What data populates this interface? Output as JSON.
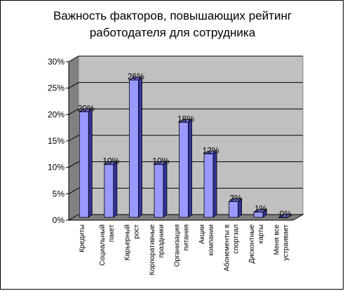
{
  "chart_data": {
    "type": "bar",
    "title_lines": [
      "Важность факторов, повышающих рейтинг",
      "работодателя для сотрудника"
    ],
    "categories": [
      [
        "Кредиты"
      ],
      [
        "Социальный",
        "пакет"
      ],
      [
        "Карьерный",
        "рост"
      ],
      [
        "Корпоративные",
        "праздники"
      ],
      [
        "Организация",
        "питания"
      ],
      [
        "Акции",
        "компании"
      ],
      [
        "Абонементы в",
        "спортзал"
      ],
      [
        "Дисконтные",
        "карты"
      ],
      [
        "Меня все",
        "устраивает"
      ]
    ],
    "values": [
      20,
      10,
      26,
      10,
      18,
      12,
      3,
      1,
      0
    ],
    "data_labels": [
      "20%",
      "10%",
      "26%",
      "10%",
      "18%",
      "12%",
      "3%",
      "1%",
      "0%"
    ],
    "y_ticks": [
      "0%",
      "5%",
      "10%",
      "15%",
      "20%",
      "25%",
      "30%"
    ],
    "ylim": [
      0,
      30
    ],
    "xlabel": "",
    "ylabel": "",
    "grid": true,
    "legend": "none",
    "colors": {
      "wall": "#c0c0c0",
      "bar_front": "#9999ff",
      "bar_side": "#333399",
      "bar_top": "#6666cc",
      "floor": "#808080",
      "gridline": "#000000"
    }
  }
}
